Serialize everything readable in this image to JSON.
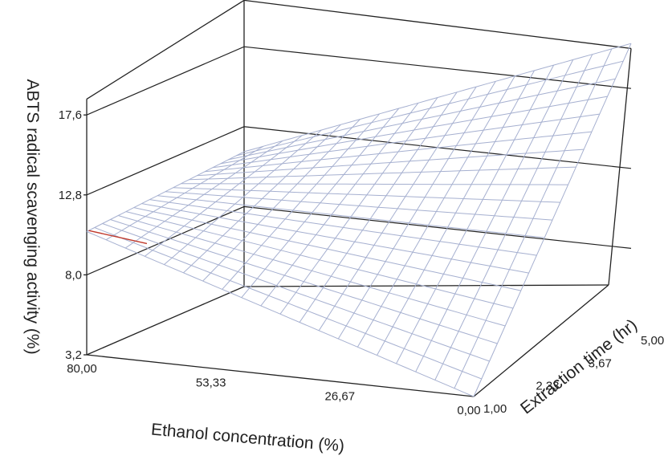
{
  "chart_data": {
    "type": "surface",
    "title": "",
    "zlabel": "ABTS radical scavenging activity (%)",
    "xlabel": "Ethanol concentration (%)",
    "ylabel": "Extraction time (hr)",
    "x_ticks": [
      "80,00",
      "53,33",
      "26,67",
      "0,00"
    ],
    "y_ticks": [
      "1,00",
      "2,33",
      "3,67",
      "5,00"
    ],
    "z_ticks": [
      "3,2",
      "8,0",
      "12,8",
      "17,6"
    ],
    "x_range": [
      0,
      80
    ],
    "y_range": [
      1,
      5
    ],
    "z_range": [
      3.2,
      20
    ],
    "corner_values": [
      {
        "ethanol": 80,
        "time": 1,
        "activity": 10.6
      },
      {
        "ethanol": 0,
        "time": 1,
        "activity": 3.2
      },
      {
        "ethanol": 80,
        "time": 5,
        "activity": 11.3
      },
      {
        "ethanol": 0,
        "time": 5,
        "activity": 20.3
      }
    ],
    "surface_colors": {
      "low": "#9aa8c8",
      "high": "#c0392b"
    }
  }
}
